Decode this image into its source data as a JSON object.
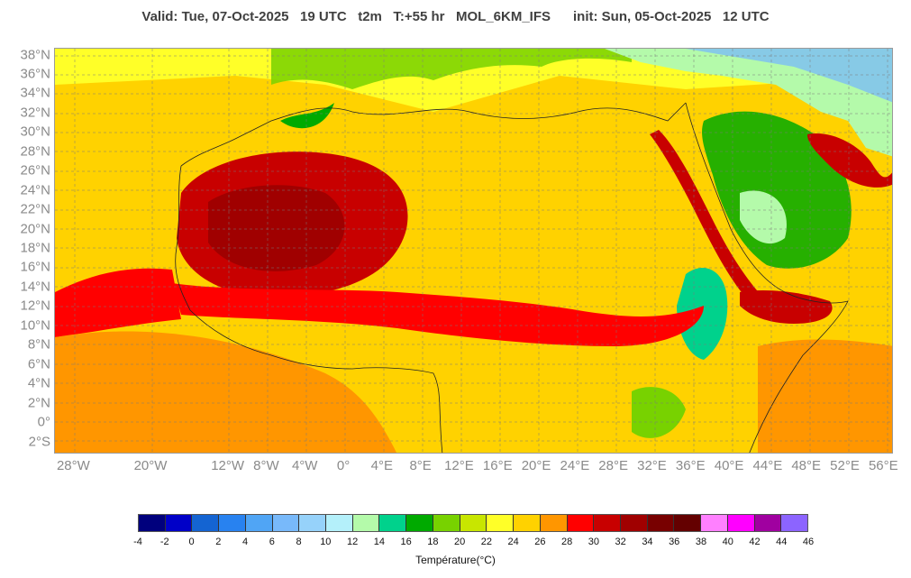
{
  "header": {
    "title": "Valid: Tue, 07-Oct-2025   19 UTC   t2m   T:+55 hr   MOL_6KM_IFS      init: Sun, 05-Oct-2025   12 UTC"
  },
  "map": {
    "lat_labels": [
      "38°N",
      "36°N",
      "34°N",
      "32°N",
      "30°N",
      "28°N",
      "26°N",
      "24°N",
      "22°N",
      "20°N",
      "18°N",
      "16°N",
      "14°N",
      "12°N",
      "10°N",
      "8°N",
      "6°N",
      "4°N",
      "2°N",
      "0°",
      "2°S"
    ],
    "lon_labels": [
      "28°W",
      "20°W",
      "12°W",
      "8°W",
      "4°W",
      "0°",
      "4°E",
      "8°E",
      "12°E",
      "16°E",
      "20°E",
      "24°E",
      "28°E",
      "32°E",
      "36°E",
      "40°E",
      "44°E",
      "48°E",
      "52°E",
      "56°E"
    ],
    "lon_values": [
      -28,
      -20,
      -12,
      -8,
      -4,
      0,
      4,
      8,
      12,
      16,
      20,
      24,
      28,
      32,
      36,
      40,
      44,
      48,
      52,
      56
    ]
  },
  "colorbar": {
    "label": "Température(°C)",
    "ticks": [
      "-4",
      "-2",
      "0",
      "2",
      "4",
      "6",
      "8",
      "10",
      "12",
      "14",
      "16",
      "18",
      "20",
      "22",
      "24",
      "26",
      "28",
      "30",
      "32",
      "34",
      "36",
      "38",
      "40",
      "42",
      "44",
      "46"
    ],
    "colors": [
      "#00007d",
      "#0000c8",
      "#1464d2",
      "#2882f0",
      "#50a5f5",
      "#78b9fa",
      "#96d2fa",
      "#b4f0fa",
      "#b4faaa",
      "#00d28c",
      "#00aa00",
      "#78d200",
      "#c8e600",
      "#ffff28",
      "#ffd200",
      "#ff9600",
      "#ff0000",
      "#c80000",
      "#a00000",
      "#780000",
      "#640000",
      "#ff80ff",
      "#ff00ff",
      "#a000a0",
      "#8c64ff"
    ]
  }
}
